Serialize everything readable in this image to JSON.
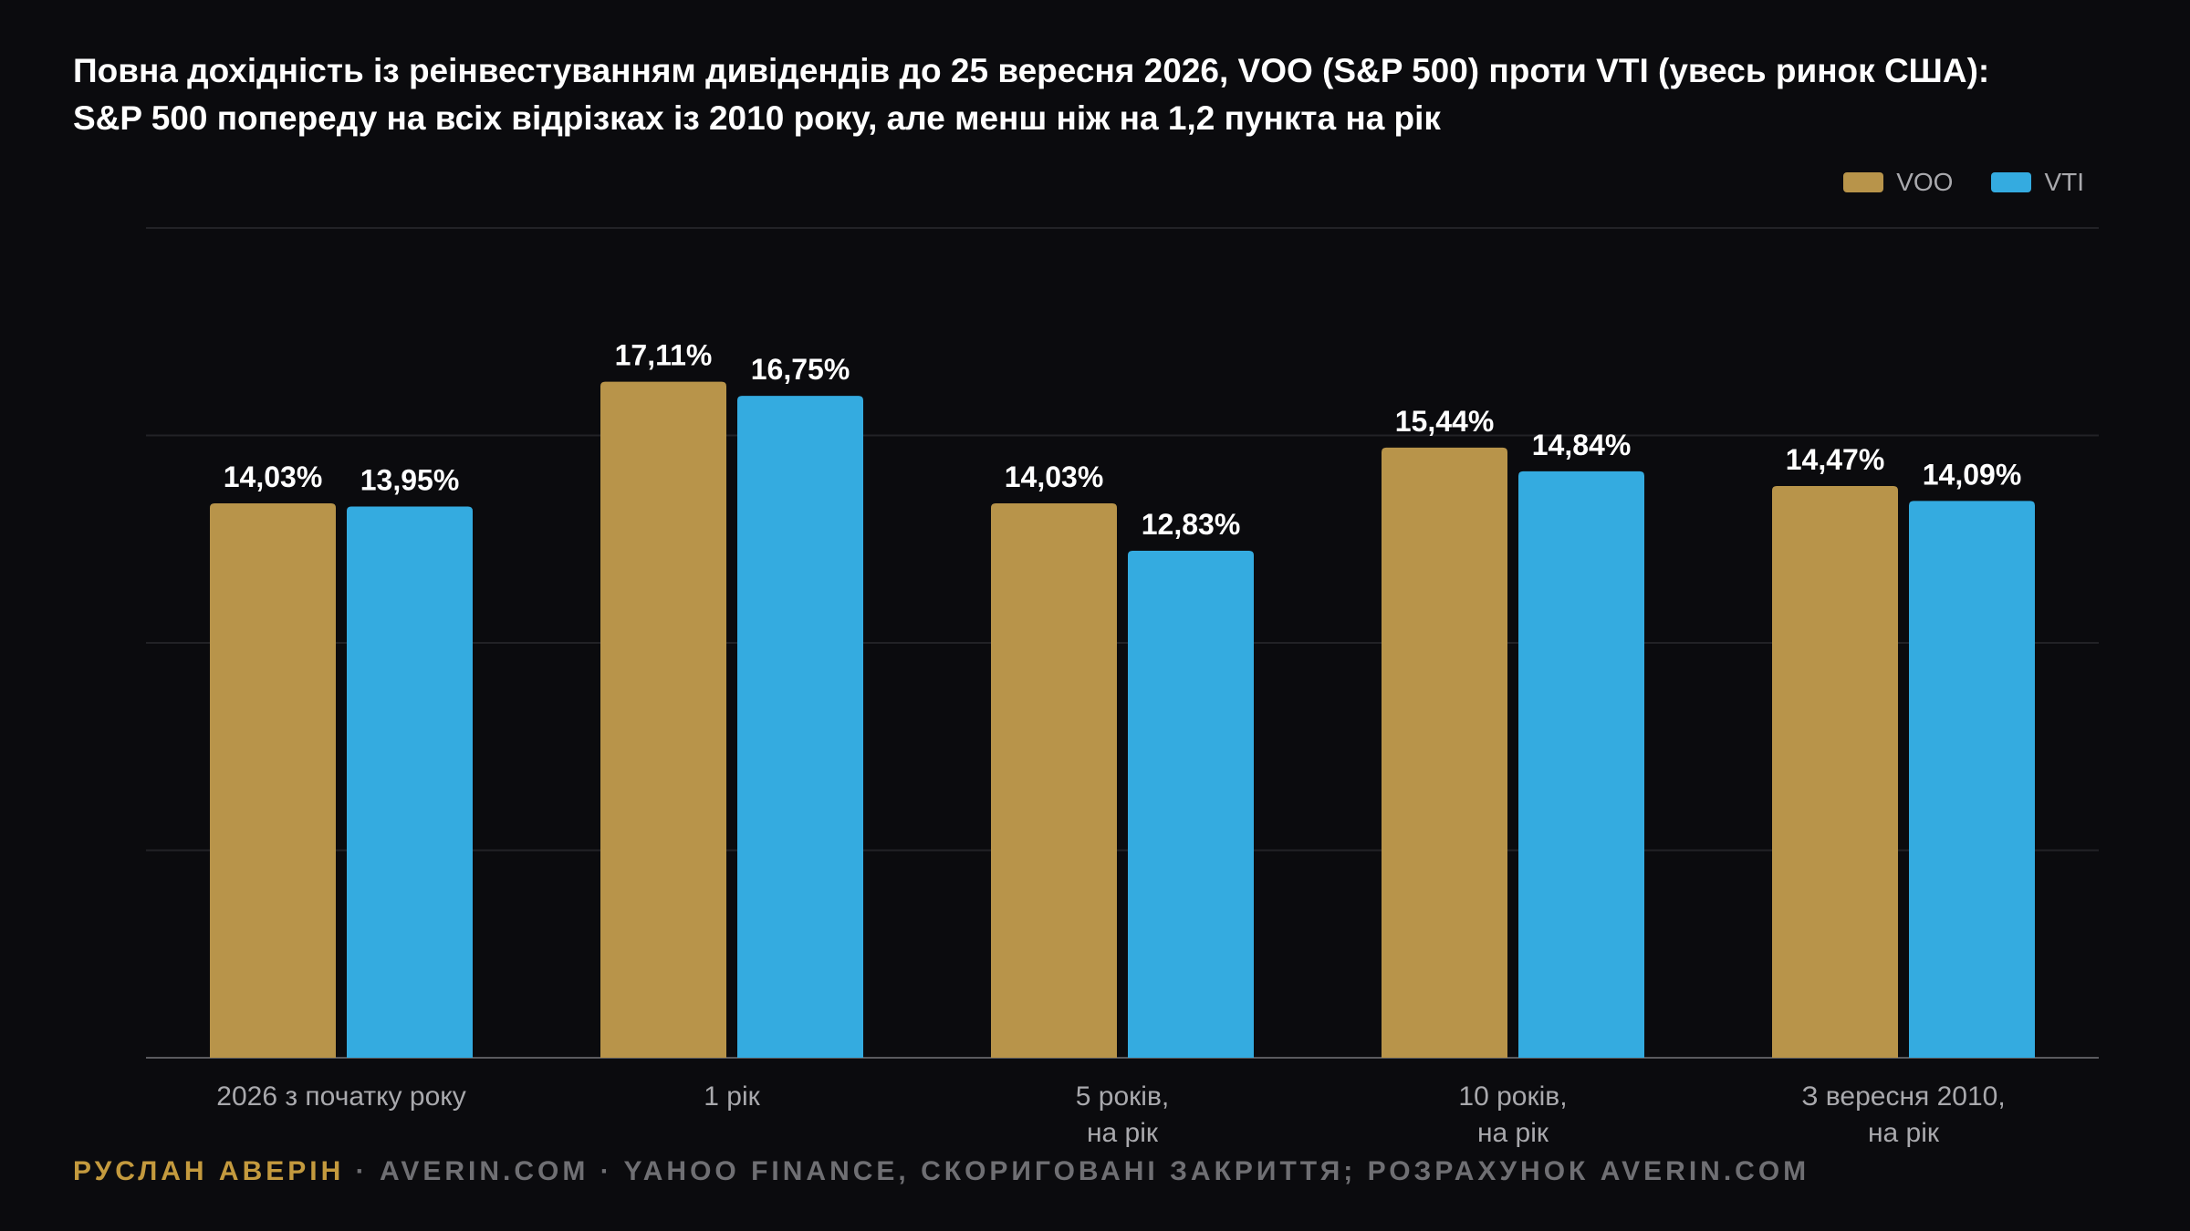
{
  "title_lines": [
    "Повна дохідність із реінвестуванням дивідендів до 25 вересня 2026, VOO (S&P 500) проти VTI (увесь ринок США):",
    "S&P 500 попереду на всіх відрізках із 2010 року, але менш ніж на 1,2 пункта на рік"
  ],
  "legend": [
    {
      "label": "VOO",
      "color": "#b8944a"
    },
    {
      "label": "VTI",
      "color": "#34abe0"
    }
  ],
  "footer": {
    "author": "РУСЛАН АВЕРІН",
    "separator": " · ",
    "site": "AVERIN.COM",
    "source": "YAHOO FINANCE, СКОРИГОВАНІ ЗАКРИТТЯ; РОЗРАХУНОК AVERIN.COM"
  },
  "chart_data": {
    "type": "bar",
    "categories": [
      [
        "2026 з початку року"
      ],
      [
        "1 рік"
      ],
      [
        "5 років,",
        "на рік"
      ],
      [
        "10 років,",
        "на рік"
      ],
      [
        "З вересня 2010,",
        "на рік"
      ]
    ],
    "series": [
      {
        "name": "VOO",
        "color": "#b8944a",
        "values": [
          14.03,
          17.11,
          14.03,
          15.44,
          14.47
        ],
        "labels": [
          "14,03%",
          "17,11%",
          "14,03%",
          "15,44%",
          "14,47%"
        ]
      },
      {
        "name": "VTI",
        "color": "#34abe0",
        "values": [
          13.95,
          16.75,
          12.83,
          14.84,
          14.09
        ],
        "labels": [
          "13,95%",
          "16,75%",
          "12,83%",
          "14,84%",
          "14,09%"
        ]
      }
    ],
    "ylim": [
      0,
      21
    ],
    "gridlines": [
      0,
      5.25,
      10.5,
      15.75,
      21
    ],
    "grid": true,
    "legend_position": "top-right"
  }
}
